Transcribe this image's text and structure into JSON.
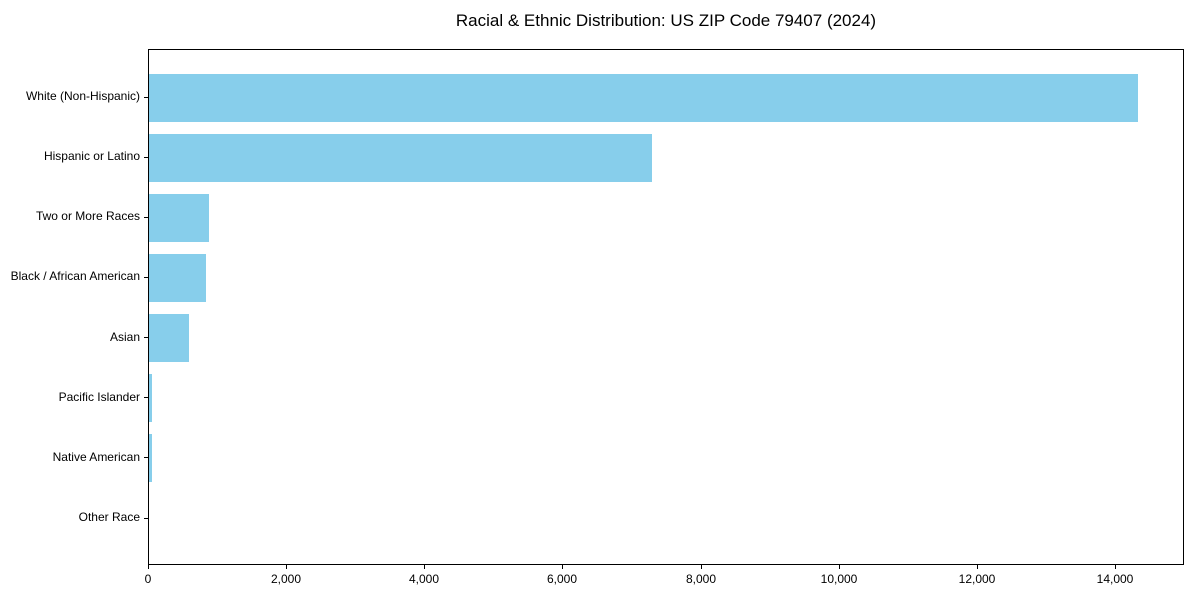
{
  "chart_data": {
    "type": "bar",
    "orientation": "horizontal",
    "title": "Racial & Ethnic Distribution: US ZIP Code 79407 (2024)",
    "categories": [
      "White (Non-Hispanic)",
      "Hispanic or Latino",
      "Two or More Races",
      "Black / African American",
      "Asian",
      "Pacific Islander",
      "Native American",
      "Other Race"
    ],
    "values": [
      14320,
      7290,
      870,
      830,
      580,
      40,
      50,
      0
    ],
    "bar_color": "#87CEEB",
    "xlabel": "",
    "ylabel": "",
    "xlim": [
      0,
      15000
    ],
    "xticks": [
      0,
      2000,
      4000,
      6000,
      8000,
      10000,
      12000,
      14000
    ],
    "xtick_labels": [
      "0",
      "2,000",
      "4,000",
      "6,000",
      "8,000",
      "10,000",
      "12,000",
      "14,000"
    ],
    "grid": false,
    "legend": false,
    "background_color": "#ffffff",
    "text_color": "#000000"
  }
}
